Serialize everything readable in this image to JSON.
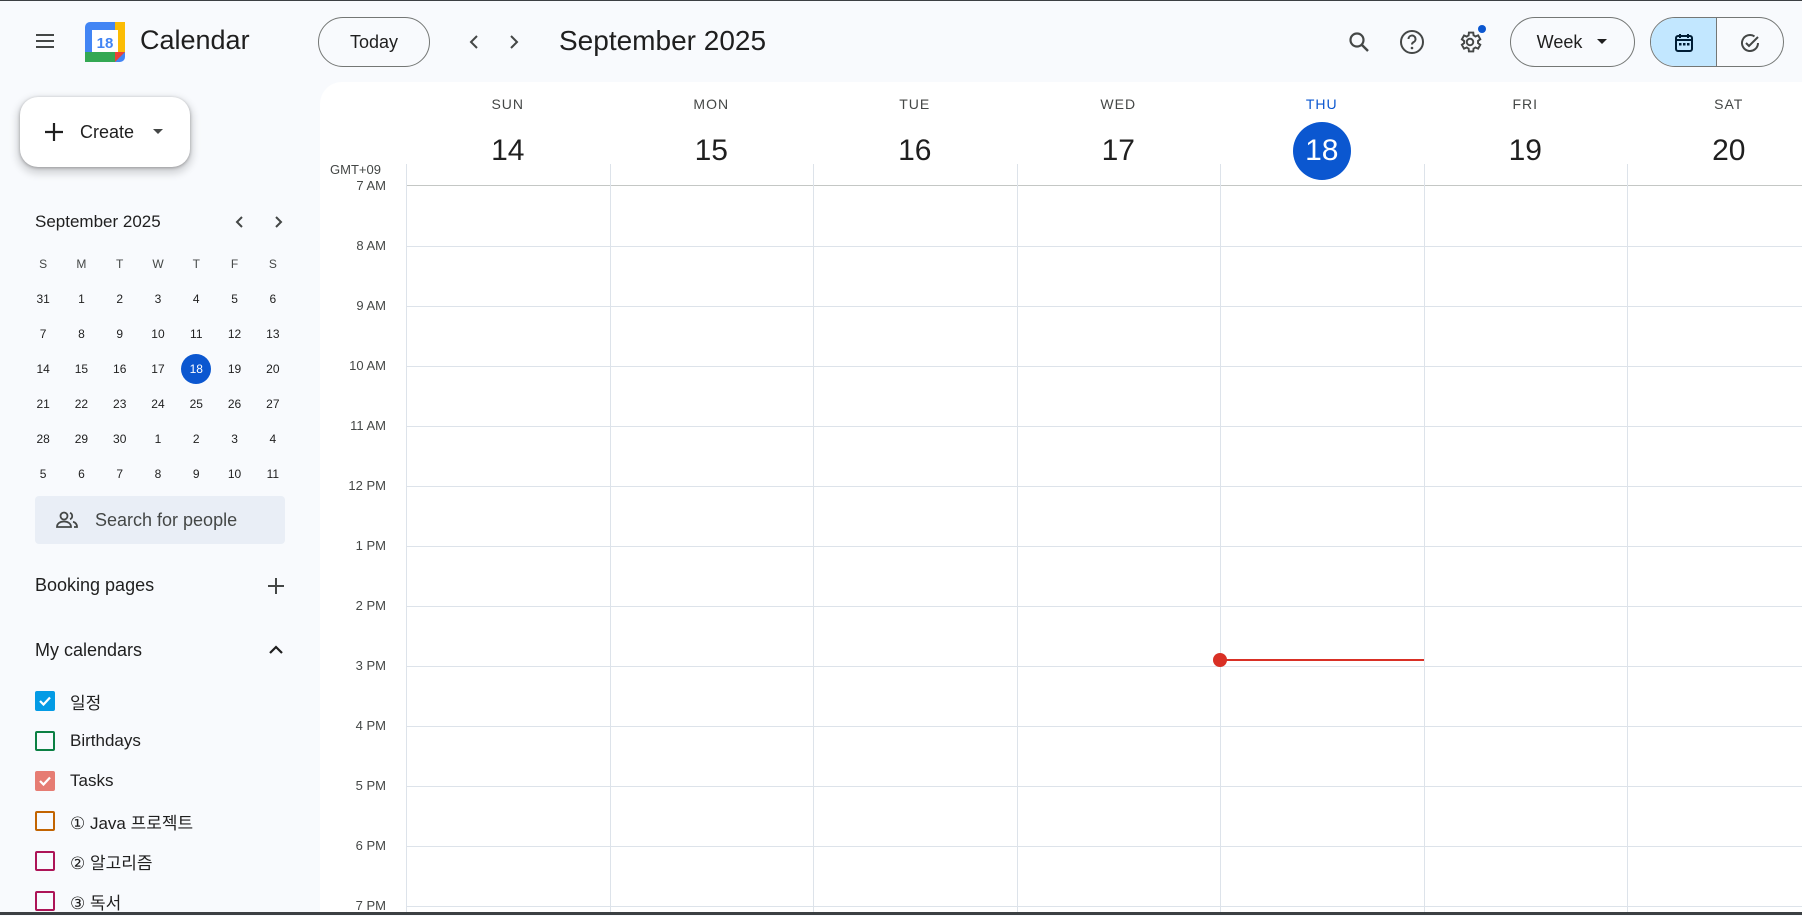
{
  "header": {
    "app_title": "Calendar",
    "logo_day": "18",
    "today_label": "Today",
    "period_title": "September 2025",
    "view_label": "Week"
  },
  "sidebar": {
    "create_label": "Create",
    "mini_cal": {
      "title": "September 2025",
      "weekday_headers": [
        "S",
        "M",
        "T",
        "W",
        "T",
        "F",
        "S"
      ],
      "weeks": [
        [
          "31",
          "1",
          "2",
          "3",
          "4",
          "5",
          "6"
        ],
        [
          "7",
          "8",
          "9",
          "10",
          "11",
          "12",
          "13"
        ],
        [
          "14",
          "15",
          "16",
          "17",
          "18",
          "19",
          "20"
        ],
        [
          "21",
          "22",
          "23",
          "24",
          "25",
          "26",
          "27"
        ],
        [
          "28",
          "29",
          "30",
          "1",
          "2",
          "3",
          "4"
        ],
        [
          "5",
          "6",
          "7",
          "8",
          "9",
          "10",
          "11"
        ]
      ],
      "today": "18"
    },
    "search_people_placeholder": "Search for people",
    "booking_pages_label": "Booking pages",
    "my_calendars_label": "My calendars",
    "calendars": [
      {
        "name": "일정",
        "checked": true,
        "color": "#039be5"
      },
      {
        "name": "Birthdays",
        "checked": false,
        "color": "#0b8043"
      },
      {
        "name": "Tasks",
        "checked": true,
        "color": "#e67c73"
      },
      {
        "name": "① Java 프로젝트",
        "checked": false,
        "color": "#c26401"
      },
      {
        "name": "② 알고리즘",
        "checked": false,
        "color": "#ad1457"
      },
      {
        "name": "③ 독서",
        "checked": false,
        "color": "#ad1457"
      }
    ]
  },
  "week": {
    "timezone": "GMT+09",
    "days": [
      {
        "dow": "SUN",
        "num": "14",
        "today": false
      },
      {
        "dow": "MON",
        "num": "15",
        "today": false
      },
      {
        "dow": "TUE",
        "num": "16",
        "today": false
      },
      {
        "dow": "WED",
        "num": "17",
        "today": false
      },
      {
        "dow": "THU",
        "num": "18",
        "today": true
      },
      {
        "dow": "FRI",
        "num": "19",
        "today": false
      },
      {
        "dow": "SAT",
        "num": "20",
        "today": false
      }
    ],
    "hours": [
      "7 AM",
      "8 AM",
      "9 AM",
      "10 AM",
      "11 AM",
      "12 PM",
      "1 PM",
      "2 PM",
      "3 PM",
      "4 PM",
      "5 PM",
      "6 PM",
      "7 PM"
    ],
    "current_time_hour": 14.9
  },
  "colors": {
    "accent": "#0b57d0",
    "now_indicator": "#d93025",
    "selected_view_bg": "#c2e7ff"
  }
}
